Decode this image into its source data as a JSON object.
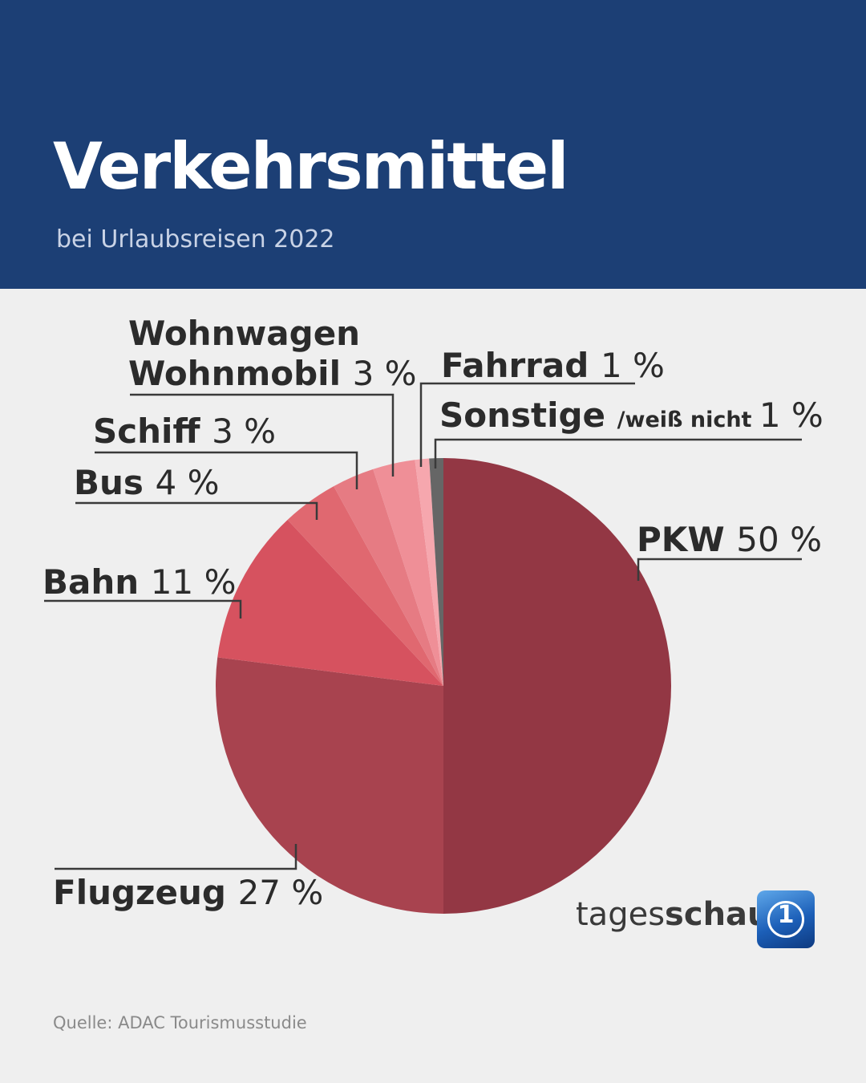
{
  "header": {
    "title": "Verkehrsmittel",
    "subtitle": "bei Urlaubsreisen 2022"
  },
  "chart_data": {
    "type": "pie",
    "title": "Verkehrsmittel",
    "subtitle": "bei Urlaubsreisen 2022",
    "slices": [
      {
        "label": "PKW",
        "value": 50,
        "value_label": "50 %",
        "color": "#933744"
      },
      {
        "label": "Flugzeug",
        "value": 27,
        "value_label": "27 %",
        "color": "#a8434f"
      },
      {
        "label": "Bahn",
        "value": 11,
        "value_label": "11 %",
        "color": "#d6525f"
      },
      {
        "label": "Bus",
        "value": 4,
        "value_label": "4 %",
        "color": "#e06870"
      },
      {
        "label": "Schiff",
        "value": 3,
        "value_label": "3 %",
        "color": "#e67b83"
      },
      {
        "label": "Wohnwagen Wohnmobil",
        "label_lines": [
          "Wohnwagen",
          "Wohnmobil"
        ],
        "value": 3,
        "value_label": "3 %",
        "color": "#ef8f97"
      },
      {
        "label": "Fahrrad",
        "value": 1,
        "value_label": "1 %",
        "color": "#f6a7ae"
      },
      {
        "label": "Sonstige /weiß nicht",
        "label_main": "Sonstige",
        "label_sub": "/weiß nicht",
        "value": 1,
        "value_label": "1 %",
        "color": "#666666"
      }
    ]
  },
  "brand": {
    "name_light": "tages",
    "name_bold": "schau",
    "logo_text": "1"
  },
  "source": "Quelle: ADAC Tourismusstudie"
}
